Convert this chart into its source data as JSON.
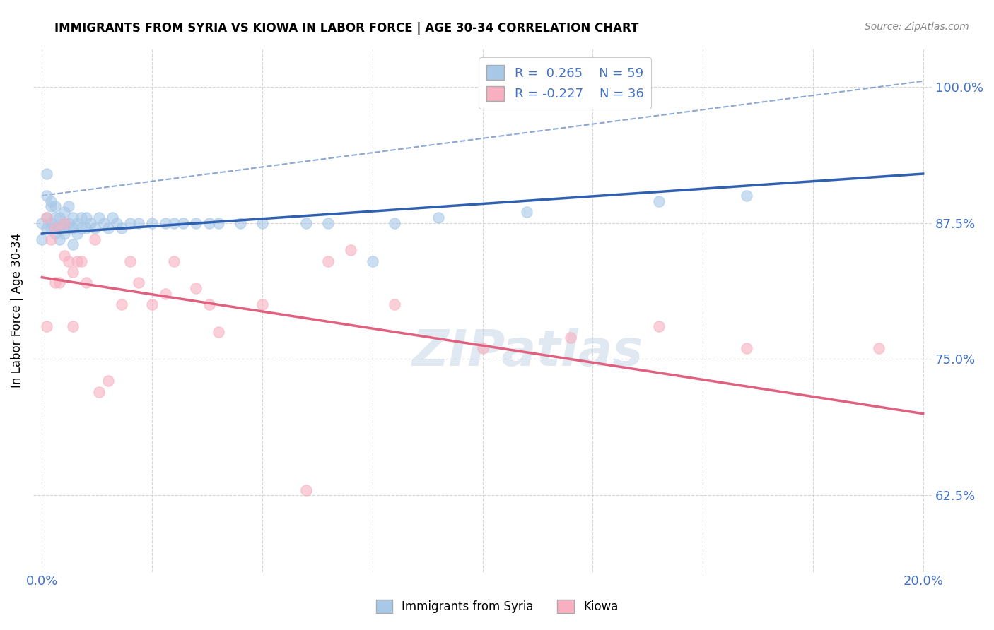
{
  "title": "IMMIGRANTS FROM SYRIA VS KIOWA IN LABOR FORCE | AGE 30-34 CORRELATION CHART",
  "source_text": "Source: ZipAtlas.com",
  "ylabel": "In Labor Force | Age 30-34",
  "xlim": [
    -0.002,
    0.202
  ],
  "ylim": [
    0.555,
    1.035
  ],
  "yticks": [
    0.625,
    0.75,
    0.875,
    1.0
  ],
  "ytick_labels": [
    "62.5%",
    "75.0%",
    "87.5%",
    "100.0%"
  ],
  "xticks": [
    0.0,
    0.025,
    0.05,
    0.075,
    0.1,
    0.125,
    0.15,
    0.175,
    0.2
  ],
  "xtick_labels": [
    "0.0%",
    "",
    "",
    "",
    "",
    "",
    "",
    "",
    "20.0%"
  ],
  "syria_R": 0.265,
  "syria_N": 59,
  "kiowa_R": -0.227,
  "kiowa_N": 36,
  "syria_color": "#a8c8e8",
  "kiowa_color": "#f8b0c0",
  "syria_line_color": "#3060b0",
  "kiowa_line_color": "#e06080",
  "syria_points_x": [
    0.0,
    0.0,
    0.001,
    0.001,
    0.001,
    0.001,
    0.002,
    0.002,
    0.002,
    0.002,
    0.003,
    0.003,
    0.003,
    0.003,
    0.004,
    0.004,
    0.004,
    0.005,
    0.005,
    0.005,
    0.006,
    0.006,
    0.006,
    0.007,
    0.007,
    0.007,
    0.008,
    0.008,
    0.009,
    0.009,
    0.01,
    0.01,
    0.011,
    0.012,
    0.013,
    0.014,
    0.015,
    0.016,
    0.017,
    0.018,
    0.02,
    0.022,
    0.025,
    0.028,
    0.03,
    0.032,
    0.035,
    0.038,
    0.04,
    0.045,
    0.05,
    0.06,
    0.065,
    0.075,
    0.08,
    0.09,
    0.11,
    0.14,
    0.16
  ],
  "syria_points_y": [
    0.875,
    0.86,
    0.9,
    0.92,
    0.87,
    0.88,
    0.87,
    0.89,
    0.875,
    0.895,
    0.865,
    0.88,
    0.87,
    0.89,
    0.86,
    0.88,
    0.87,
    0.865,
    0.885,
    0.875,
    0.875,
    0.89,
    0.87,
    0.87,
    0.855,
    0.88,
    0.865,
    0.875,
    0.87,
    0.88,
    0.87,
    0.88,
    0.875,
    0.87,
    0.88,
    0.875,
    0.87,
    0.88,
    0.875,
    0.87,
    0.875,
    0.875,
    0.875,
    0.875,
    0.875,
    0.875,
    0.875,
    0.875,
    0.875,
    0.875,
    0.875,
    0.875,
    0.875,
    0.84,
    0.875,
    0.88,
    0.885,
    0.895,
    0.9
  ],
  "kiowa_points_x": [
    0.001,
    0.001,
    0.002,
    0.003,
    0.003,
    0.004,
    0.005,
    0.005,
    0.006,
    0.007,
    0.007,
    0.008,
    0.009,
    0.01,
    0.012,
    0.013,
    0.015,
    0.018,
    0.02,
    0.022,
    0.025,
    0.028,
    0.03,
    0.035,
    0.038,
    0.04,
    0.05,
    0.06,
    0.065,
    0.07,
    0.08,
    0.1,
    0.12,
    0.14,
    0.16,
    0.19
  ],
  "kiowa_points_y": [
    0.88,
    0.78,
    0.86,
    0.82,
    0.87,
    0.82,
    0.845,
    0.875,
    0.84,
    0.78,
    0.83,
    0.84,
    0.84,
    0.82,
    0.86,
    0.72,
    0.73,
    0.8,
    0.84,
    0.82,
    0.8,
    0.81,
    0.84,
    0.815,
    0.8,
    0.775,
    0.8,
    0.63,
    0.84,
    0.85,
    0.8,
    0.76,
    0.77,
    0.78,
    0.76,
    0.76
  ],
  "syria_line_x0": 0.0,
  "syria_line_x1": 0.2,
  "kiowa_line_x0": 0.0,
  "kiowa_line_x1": 0.2,
  "dash_line_x0": 0.0,
  "dash_line_x1": 0.2,
  "watermark_text": "ZIPatlas"
}
